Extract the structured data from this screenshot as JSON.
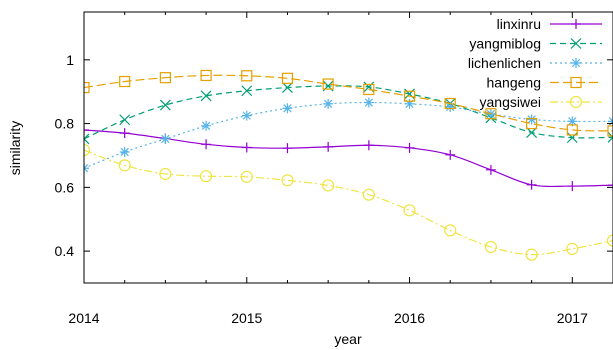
{
  "chart_data": {
    "type": "line",
    "xlabel": "year",
    "ylabel": "similarity",
    "xlim": [
      2014,
      2017.25
    ],
    "ylim": [
      0.3,
      1.15
    ],
    "xticks": [
      2014,
      2015,
      2016,
      2017
    ],
    "yticks": [
      0.4,
      0.6,
      0.8,
      1
    ],
    "xtick_labels": [
      "2014",
      "2015",
      "2016",
      "2017"
    ],
    "ytick_labels": [
      "0.4",
      "0.6",
      "0.8",
      "1"
    ],
    "grid": false,
    "legend_position": "top-right",
    "x": [
      2014,
      2014.25,
      2014.5,
      2014.75,
      2015,
      2015.25,
      2015.5,
      2015.75,
      2016,
      2016.25,
      2016.5,
      2016.75,
      2017,
      2017.25
    ],
    "series": [
      {
        "name": "linxinru",
        "color": "#9400d3",
        "marker": "plus",
        "dash": "solid",
        "values": [
          0.78,
          0.77,
          0.753,
          0.735,
          0.725,
          0.723,
          0.727,
          0.732,
          0.724,
          0.702,
          0.655,
          0.608,
          0.604,
          0.607
        ]
      },
      {
        "name": "yangmiblog",
        "color": "#009e73",
        "marker": "cross",
        "dash": "dash",
        "values": [
          0.752,
          0.812,
          0.858,
          0.887,
          0.903,
          0.913,
          0.918,
          0.915,
          0.893,
          0.863,
          0.818,
          0.772,
          0.756,
          0.757
        ]
      },
      {
        "name": "lichenlichen",
        "color": "#56b4e9",
        "marker": "asterisk",
        "dash": "dot",
        "values": [
          0.66,
          0.711,
          0.752,
          0.793,
          0.825,
          0.848,
          0.862,
          0.866,
          0.862,
          0.852,
          0.83,
          0.813,
          0.807,
          0.807
        ]
      },
      {
        "name": "hangeng",
        "color": "#e69f00",
        "marker": "square",
        "dash": "longdash",
        "values": [
          0.913,
          0.932,
          0.944,
          0.951,
          0.95,
          0.942,
          0.924,
          0.907,
          0.886,
          0.863,
          0.831,
          0.8,
          0.78,
          0.777
        ]
      },
      {
        "name": "yangsiwei",
        "color": "#f0e442",
        "marker": "circle",
        "dash": "dashdot",
        "values": [
          0.717,
          0.669,
          0.642,
          0.635,
          0.633,
          0.622,
          0.606,
          0.577,
          0.528,
          0.465,
          0.413,
          0.389,
          0.407,
          0.433
        ]
      }
    ]
  }
}
